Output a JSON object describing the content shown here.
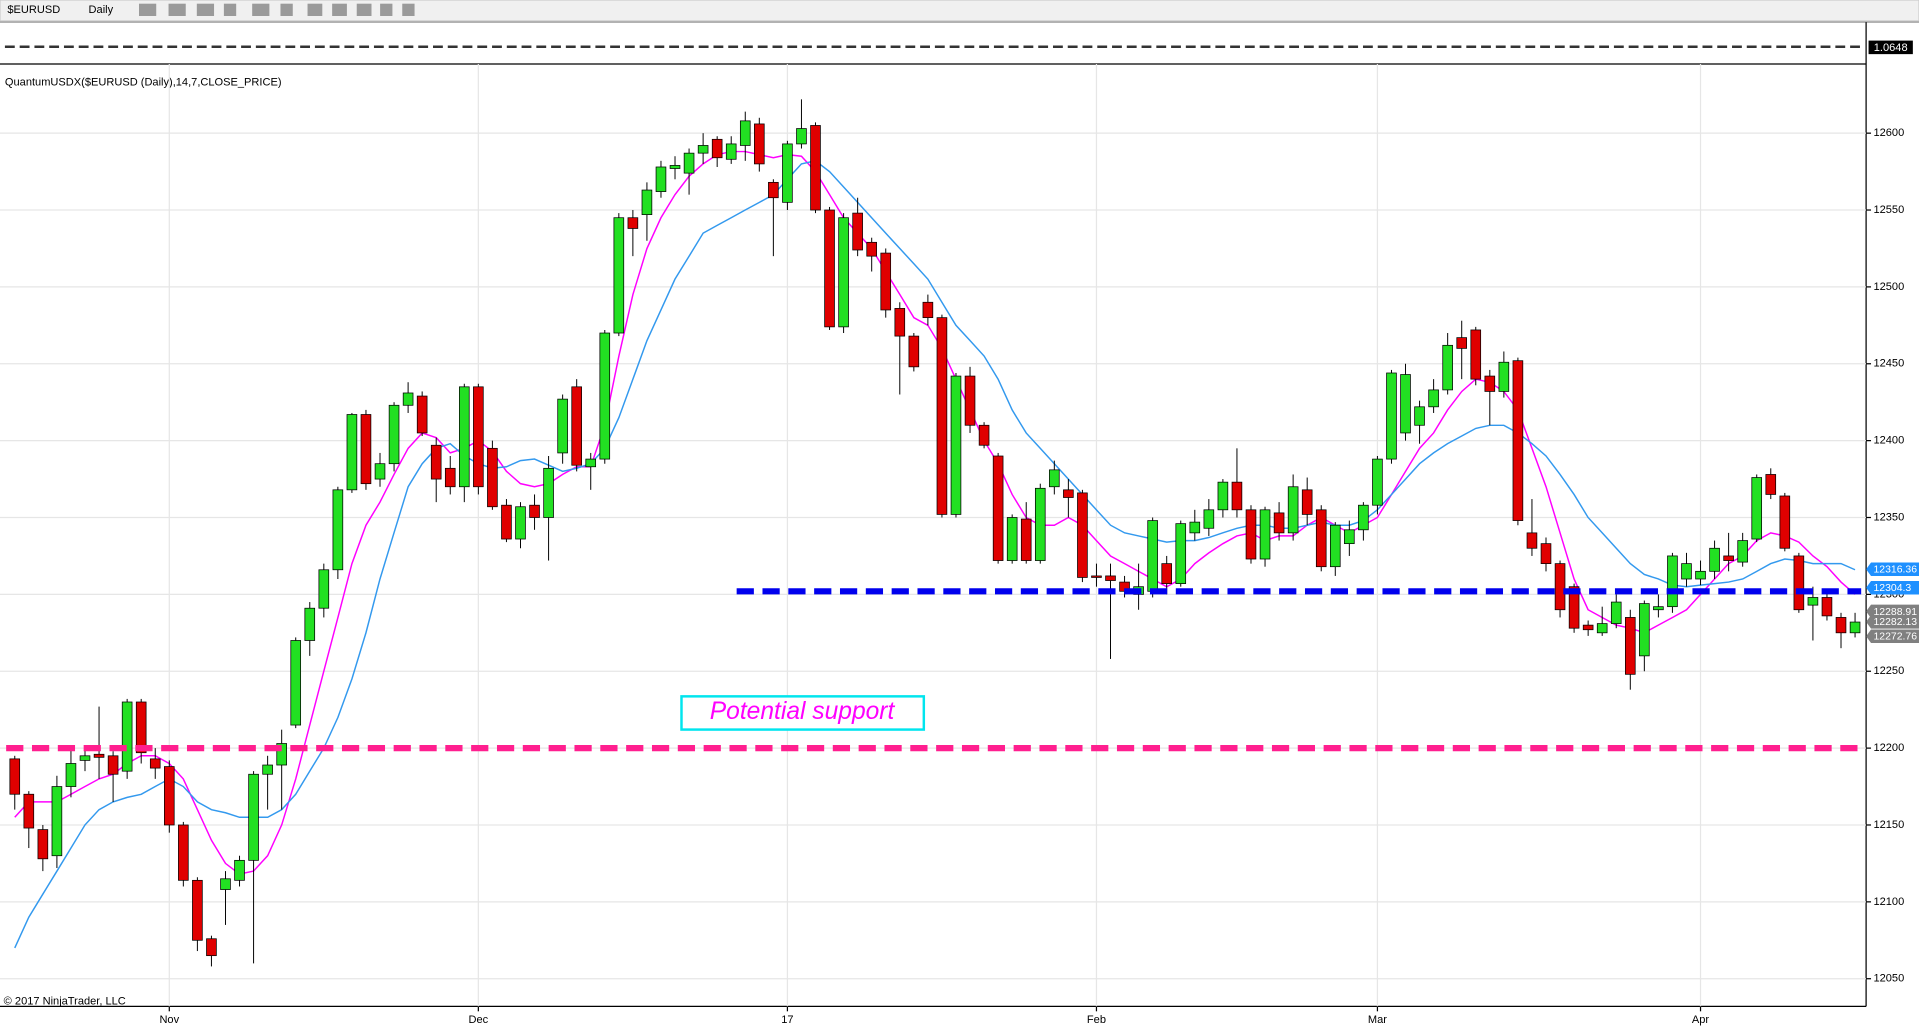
{
  "toolbar": {
    "symbol": "$EURUSD",
    "interval": "Daily"
  },
  "mini_panel": {
    "label": "1.0648"
  },
  "chart_data": {
    "type": "candlestick",
    "indicator_label": "QuantumUSDX($EURUSD (Daily),14,7,CLOSE_PRICE)",
    "copyright": "© 2017 NinjaTrader, LLC",
    "annotation": "Potential support",
    "ylim": [
      12032,
      12645
    ],
    "yticks": [
      12050,
      12100,
      12150,
      12200,
      12250,
      12300,
      12350,
      12400,
      12450,
      12500,
      12550,
      12600
    ],
    "xticks": [
      {
        "value": 11,
        "label": "Nov"
      },
      {
        "value": 33,
        "label": "Dec"
      },
      {
        "value": 55,
        "label": "17"
      },
      {
        "value": 77,
        "label": "Feb"
      },
      {
        "value": 97,
        "label": "Mar"
      },
      {
        "value": 120,
        "label": "Apr"
      }
    ],
    "grid": true,
    "up_color": "#22e022",
    "down_color": "#e00000",
    "open": [
      12193,
      12170,
      12147,
      12130,
      12175,
      12192,
      12196,
      12195,
      12185,
      12230,
      12193,
      12188,
      12150,
      12114,
      12076,
      12108,
      12114,
      12127,
      12183,
      12189,
      12215,
      12270,
      12291,
      12316,
      12368,
      12417,
      12375,
      12385,
      12423,
      12429,
      12397,
      12382,
      12370,
      12435,
      12395,
      12358,
      12336,
      12358,
      12350,
      12392,
      12435,
      12383,
      12388,
      12470,
      12545,
      12547,
      12562,
      12577,
      12574,
      12587,
      12596,
      12583,
      12592,
      12606,
      12568,
      12555,
      12593,
      12605,
      12550,
      12474,
      12548,
      12529,
      12522,
      12486,
      12468,
      12490,
      12480,
      12352,
      12442,
      12410,
      12390,
      12322,
      12349,
      12322,
      12370,
      12368,
      12366,
      12312,
      12312,
      12308,
      12300,
      12302,
      12320,
      12307,
      12340,
      12343,
      12355,
      12373,
      12355,
      12323,
      12353,
      12340,
      12368,
      12355,
      12318,
      12333,
      12342,
      12358,
      12388,
      12405,
      12410,
      12422,
      12433,
      12467,
      12472,
      12442,
      12432,
      12452,
      12340,
      12333,
      12320,
      12305,
      12280,
      12275,
      12281,
      12285,
      12260,
      12290,
      12292,
      12310,
      12310,
      12315,
      12325,
      12321,
      12336,
      12378,
      12364,
      12325,
      12293,
      12298,
      12285,
      12275
    ],
    "high": [
      12195,
      12172,
      12150,
      12182,
      12200,
      12202,
      12227,
      12198,
      12232,
      12232,
      12200,
      12192,
      12152,
      12116,
      12078,
      12120,
      12130,
      12185,
      12195,
      12212,
      12272,
      12295,
      12320,
      12370,
      12418,
      12420,
      12392,
      12425,
      12438,
      12432,
      12402,
      12390,
      12437,
      12437,
      12400,
      12362,
      12360,
      12365,
      12390,
      12430,
      12440,
      12392,
      12472,
      12548,
      12550,
      12568,
      12582,
      12585,
      12590,
      12600,
      12598,
      12598,
      12614,
      12610,
      12570,
      12595,
      12622,
      12607,
      12552,
      12548,
      12558,
      12532,
      12525,
      12490,
      12470,
      12495,
      12482,
      12444,
      12448,
      12412,
      12392,
      12352,
      12360,
      12372,
      12387,
      12375,
      12368,
      12320,
      12320,
      12312,
      12320,
      12350,
      12325,
      12348,
      12355,
      12362,
      12375,
      12395,
      12358,
      12357,
      12360,
      12378,
      12376,
      12358,
      12347,
      12348,
      12360,
      12390,
      12446,
      12450,
      12426,
      12440,
      12470,
      12478,
      12474,
      12446,
      12458,
      12454,
      12362,
      12337,
      12322,
      12307,
      12283,
      12292,
      12300,
      12290,
      12296,
      12300,
      12327,
      12327,
      12322,
      12335,
      12340,
      12340,
      12378,
      12382,
      12366,
      12327,
      12305,
      12302,
      12288,
      12288
    ],
    "low": [
      12160,
      12135,
      12120,
      12122,
      12168,
      12185,
      12180,
      12165,
      12180,
      12190,
      12180,
      12145,
      12110,
      12068,
      12058,
      12085,
      12110,
      12060,
      12160,
      12160,
      12213,
      12260,
      12285,
      12310,
      12366,
      12368,
      12370,
      12380,
      12418,
      12403,
      12360,
      12365,
      12360,
      12365,
      12355,
      12334,
      12330,
      12342,
      12322,
      12385,
      12380,
      12368,
      12385,
      12468,
      12520,
      12530,
      12558,
      12570,
      12560,
      12580,
      12578,
      12580,
      12582,
      12575,
      12520,
      12550,
      12590,
      12548,
      12472,
      12470,
      12520,
      12510,
      12480,
      12430,
      12445,
      12475,
      12350,
      12350,
      12405,
      12395,
      12320,
      12320,
      12320,
      12320,
      12365,
      12350,
      12308,
      12305,
      12258,
      12298,
      12290,
      12298,
      12300,
      12305,
      12335,
      12338,
      12350,
      12350,
      12320,
      12318,
      12335,
      12335,
      12345,
      12315,
      12312,
      12325,
      12335,
      12352,
      12385,
      12400,
      12398,
      12418,
      12430,
      12440,
      12436,
      12410,
      12428,
      12345,
      12325,
      12315,
      12285,
      12275,
      12273,
      12273,
      12278,
      12238,
      12250,
      12285,
      12288,
      12305,
      12306,
      12310,
      12315,
      12318,
      12334,
      12362,
      12328,
      12288,
      12270,
      12283,
      12265,
      12272
    ],
    "close": [
      12170,
      12148,
      12128,
      12175,
      12190,
      12195,
      12194,
      12183,
      12230,
      12197,
      12187,
      12150,
      12114,
      12075,
      12065,
      12115,
      12127,
      12183,
      12189,
      12203,
      12270,
      12291,
      12316,
      12368,
      12417,
      12372,
      12385,
      12423,
      12431,
      12405,
      12375,
      12370,
      12435,
      12370,
      12357,
      12336,
      12357,
      12350,
      12382,
      12427,
      12384,
      12388,
      12470,
      12545,
      12538,
      12563,
      12578,
      12579,
      12587,
      12592,
      12584,
      12593,
      12608,
      12580,
      12558,
      12593,
      12603,
      12550,
      12474,
      12545,
      12524,
      12520,
      12485,
      12468,
      12448,
      12480,
      12352,
      12442,
      12410,
      12397,
      12322,
      12350,
      12322,
      12369,
      12381,
      12363,
      12311,
      12311,
      12309,
      12302,
      12305,
      12348,
      12307,
      12346,
      12347,
      12355,
      12373,
      12355,
      12323,
      12355,
      12340,
      12370,
      12352,
      12318,
      12345,
      12342,
      12358,
      12388,
      12444,
      12443,
      12422,
      12433,
      12462,
      12460,
      12440,
      12432,
      12451,
      12348,
      12330,
      12320,
      12290,
      12278,
      12277,
      12281,
      12295,
      12248,
      12294,
      12292,
      12325,
      12320,
      12315,
      12330,
      12322,
      12335,
      12376,
      12365,
      12330,
      12290,
      12298,
      12286,
      12275,
      12282
    ],
    "series": [
      {
        "color": "#ff00ff",
        "values": [
          12155,
          12165,
          12165,
          12165,
          12170,
          12175,
          12180,
          12183,
          12190,
          12195,
          12195,
          12190,
          12180,
          12160,
          12140,
          12125,
          12118,
          12120,
          12130,
          12150,
          12180,
          12215,
          12250,
          12285,
          12320,
          12345,
          12360,
          12378,
          12395,
          12405,
          12402,
          12392,
          12395,
          12400,
          12393,
          12380,
          12372,
          12370,
          12372,
          12378,
          12383,
          12383,
          12410,
          12455,
          12495,
          12525,
          12545,
          12560,
          12572,
          12580,
          12586,
          12588,
          12588,
          12586,
          12584,
          12586,
          12585,
          12575,
          12560,
          12545,
          12535,
          12525,
          12510,
          12495,
          12480,
          12475,
          12460,
          12440,
          12420,
          12400,
          12385,
          12365,
          12350,
          12345,
          12345,
          12350,
          12345,
          12335,
          12325,
          12320,
          12315,
          12310,
          12305,
          12310,
          12320,
          12327,
          12333,
          12338,
          12340,
          12335,
          12338,
          12338,
          12345,
          12350,
          12345,
          12340,
          12345,
          12350,
          12365,
          12380,
          12395,
          12405,
          12420,
          12432,
          12440,
          12438,
          12432,
          12420,
          12395,
          12370,
          12340,
          12310,
          12290,
          12285,
          12280,
          12278,
          12275,
          12280,
          12285,
          12290,
          12300,
          12310,
          12320,
          12325,
          12335,
          12340,
          12338,
          12334,
          12325,
          12318,
          12308,
          12300
        ]
      },
      {
        "color": "#3399ee",
        "values": [
          12070,
          12090,
          12105,
          12120,
          12135,
          12150,
          12160,
          12165,
          12168,
          12170,
          12175,
          12180,
          12175,
          12165,
          12160,
          12158,
          12155,
          12155,
          12155,
          12160,
          12170,
          12185,
          12200,
          12220,
          12245,
          12275,
          12310,
          12340,
          12370,
          12385,
          12395,
          12398,
          12390,
          12385,
          12382,
          12383,
          12387,
          12388,
          12384,
          12380,
          12382,
          12385,
          12395,
          12415,
          12440,
          12465,
          12485,
          12505,
          12520,
          12535,
          12540,
          12545,
          12550,
          12555,
          12560,
          12570,
          12580,
          12582,
          12575,
          12565,
          12555,
          12545,
          12535,
          12525,
          12515,
          12505,
          12490,
          12475,
          12465,
          12455,
          12440,
          12420,
          12405,
          12395,
          12385,
          12375,
          12365,
          12355,
          12345,
          12340,
          12338,
          12336,
          12334,
          12335,
          12335,
          12337,
          12340,
          12343,
          12345,
          12345,
          12343,
          12343,
          12345,
          12347,
          12345,
          12345,
          12348,
          12355,
          12365,
          12375,
          12385,
          12392,
          12398,
          12403,
          12408,
          12410,
          12410,
          12405,
          12398,
          12390,
          12378,
          12365,
          12350,
          12340,
          12330,
          12320,
          12313,
          12310,
          12306,
          12305,
          12306,
          12307,
          12308,
          12310,
          12315,
          12320,
          12323,
          12322,
          12320,
          12320,
          12320,
          12316
        ]
      }
    ],
    "levels": [
      {
        "value": 12302,
        "color": "#0000ee",
        "start": 52
      },
      {
        "value": 12200,
        "color": "#ff1f8f",
        "start": 0
      }
    ],
    "price_labels": [
      {
        "value": 12316.36,
        "color": "#1e90ff"
      },
      {
        "value": 12304.3,
        "color": "#1e90ff"
      },
      {
        "value": 12288.91,
        "color": "#808080"
      },
      {
        "value": 12282.13,
        "color": "#808080"
      },
      {
        "value": 12272.76,
        "color": "#808080"
      }
    ]
  }
}
